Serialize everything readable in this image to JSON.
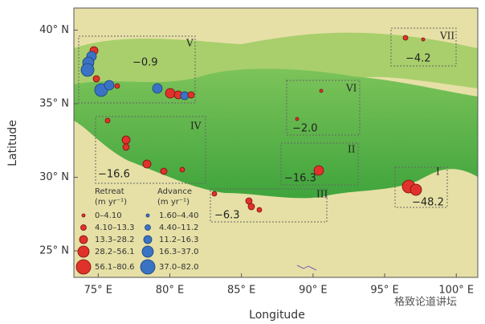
{
  "map": {
    "xlabel": "Longitude",
    "ylabel": "Latitude",
    "xlim": [
      73.3,
      101.5
    ],
    "ylim": [
      23.2,
      41.5
    ],
    "xticks": [
      {
        "value": 75,
        "label": "75° E"
      },
      {
        "value": 80,
        "label": "80° E"
      },
      {
        "value": 85,
        "label": "85° E"
      },
      {
        "value": 90,
        "label": "90° E"
      },
      {
        "value": 95,
        "label": "95° E"
      },
      {
        "value": 100,
        "label": "100° E"
      }
    ],
    "yticks": [
      {
        "value": 25,
        "label": "25° N"
      },
      {
        "value": 30,
        "label": "30° N"
      },
      {
        "value": 35,
        "label": "35° N"
      },
      {
        "value": 40,
        "label": "40° N"
      }
    ]
  },
  "regions": [
    {
      "label": "V",
      "value": "−0.9"
    },
    {
      "label": "VII",
      "value": "−4.2"
    },
    {
      "label": "VI",
      "value": "−2.0"
    },
    {
      "label": "II",
      "value": "−16.3"
    },
    {
      "label": "IV",
      "value": "−16.6"
    },
    {
      "label": "III",
      "value": "−6.3"
    },
    {
      "label": "I",
      "value": "−48.2"
    }
  ],
  "legend": {
    "retreat_title": "Retreat",
    "advance_title": "Advance",
    "unit": "(m yr⁻¹)",
    "retreat": [
      "0–4.10",
      "4.10–13.3",
      "13.3–28.2",
      "28.2–56.1",
      "56.1–80.6"
    ],
    "advance": [
      "1.60–4.40",
      "4.40–11.2",
      "11.2–16.3",
      "16.3–37.0",
      "37.0–82.0"
    ]
  },
  "watermark": "格致论道讲坛"
}
